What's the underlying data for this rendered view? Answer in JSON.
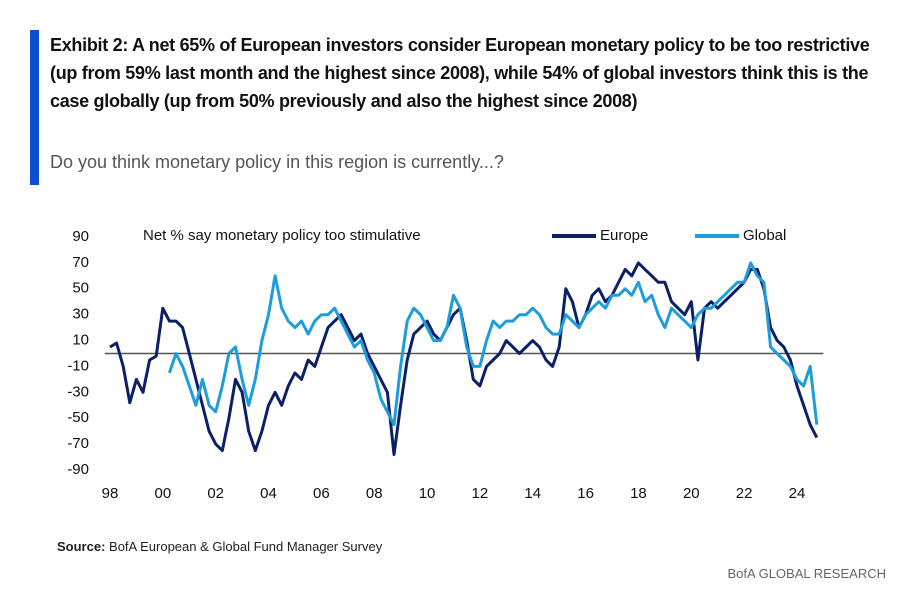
{
  "chart_data": {
    "type": "line",
    "title": "Exhibit 2: A net 65% of European investors consider European monetary policy to be too restrictive (up from 59% last month and the highest since 2008), while 54% of global investors think this is the case globally (up from 50% previously and also the highest since 2008)",
    "subtitle": "Do you think monetary policy in this region is currently...?",
    "annotation": "Net % say monetary policy too stimulative",
    "source_label": "Source:",
    "source": "BofA European & Global Fund Manager Survey",
    "footer": "BofA GLOBAL RESEARCH",
    "x": [
      1998,
      1998.25,
      1998.5,
      1998.75,
      1999,
      1999.25,
      1999.5,
      1999.75,
      2000,
      2000.25,
      2000.5,
      2000.75,
      2001,
      2001.25,
      2001.5,
      2001.75,
      2002,
      2002.25,
      2002.5,
      2002.75,
      2003,
      2003.25,
      2003.5,
      2003.75,
      2004,
      2004.25,
      2004.5,
      2004.75,
      2005,
      2005.25,
      2005.5,
      2005.75,
      2006,
      2006.25,
      2006.5,
      2006.75,
      2007,
      2007.25,
      2007.5,
      2007.75,
      2008,
      2008.25,
      2008.5,
      2008.75,
      2009,
      2009.25,
      2009.5,
      2009.75,
      2010,
      2010.25,
      2010.5,
      2010.75,
      2011,
      2011.25,
      2011.5,
      2011.75,
      2012,
      2012.25,
      2012.5,
      2012.75,
      2013,
      2013.25,
      2013.5,
      2013.75,
      2014,
      2014.25,
      2014.5,
      2014.75,
      2015,
      2015.25,
      2015.5,
      2015.75,
      2016,
      2016.25,
      2016.5,
      2016.75,
      2017,
      2017.25,
      2017.5,
      2017.75,
      2018,
      2018.25,
      2018.5,
      2018.75,
      2019,
      2019.25,
      2019.5,
      2019.75,
      2020,
      2020.25,
      2020.5,
      2020.75,
      2021,
      2021.25,
      2021.5,
      2021.75,
      2022,
      2022.25,
      2022.5,
      2022.75,
      2023,
      2023.25,
      2023.5,
      2023.75,
      2024,
      2024.25,
      2024.5,
      2024.75
    ],
    "series": [
      {
        "name": "Europe",
        "color": "#0c2065",
        "values": [
          5,
          8,
          -10,
          -38,
          -20,
          -30,
          -5,
          -2,
          35,
          25,
          25,
          20,
          0,
          -20,
          -40,
          -60,
          -70,
          -75,
          -50,
          -20,
          -30,
          -60,
          -75,
          -60,
          -40,
          -30,
          -40,
          -25,
          -15,
          -20,
          -5,
          -10,
          5,
          20,
          25,
          30,
          20,
          10,
          15,
          0,
          -10,
          -20,
          -30,
          -78,
          -40,
          -5,
          15,
          20,
          25,
          15,
          10,
          20,
          30,
          35,
          10,
          -20,
          -25,
          -10,
          -5,
          0,
          10,
          5,
          0,
          5,
          10,
          5,
          -5,
          -10,
          5,
          50,
          40,
          20,
          30,
          45,
          50,
          40,
          45,
          55,
          65,
          60,
          70,
          65,
          60,
          55,
          55,
          40,
          35,
          30,
          40,
          -5,
          35,
          40,
          35,
          40,
          45,
          50,
          55,
          65,
          65,
          50,
          20,
          10,
          5,
          -5,
          -25,
          -40,
          -55,
          -65
        ]
      },
      {
        "name": "Global",
        "color": "#1e9ddb",
        "values": [
          null,
          null,
          null,
          null,
          null,
          null,
          null,
          null,
          null,
          -15,
          0,
          -10,
          -25,
          -40,
          -20,
          -40,
          -45,
          -25,
          0,
          5,
          -20,
          -40,
          -20,
          10,
          30,
          60,
          35,
          25,
          20,
          25,
          15,
          25,
          30,
          30,
          35,
          25,
          15,
          5,
          10,
          -5,
          -15,
          -35,
          -45,
          -55,
          -10,
          25,
          35,
          30,
          20,
          10,
          10,
          20,
          45,
          35,
          5,
          -10,
          -10,
          10,
          25,
          20,
          25,
          25,
          30,
          30,
          35,
          30,
          20,
          15,
          15,
          30,
          25,
          20,
          30,
          35,
          40,
          35,
          45,
          45,
          50,
          45,
          55,
          40,
          45,
          30,
          20,
          35,
          30,
          25,
          20,
          30,
          35,
          35,
          40,
          45,
          50,
          55,
          55,
          70,
          60,
          55,
          5,
          0,
          -5,
          -10,
          -20,
          -25,
          -10,
          -55
        ]
      }
    ],
    "xlim": [
      1997.8,
      2025
    ],
    "xticks": [
      {
        "value": 1998,
        "label": "98"
      },
      {
        "value": 2000,
        "label": "00"
      },
      {
        "value": 2002,
        "label": "02"
      },
      {
        "value": 2004,
        "label": "04"
      },
      {
        "value": 2006,
        "label": "06"
      },
      {
        "value": 2008,
        "label": "08"
      },
      {
        "value": 2010,
        "label": "10"
      },
      {
        "value": 2012,
        "label": "12"
      },
      {
        "value": 2014,
        "label": "14"
      },
      {
        "value": 2016,
        "label": "16"
      },
      {
        "value": 2018,
        "label": "18"
      },
      {
        "value": 2020,
        "label": "20"
      },
      {
        "value": 2022,
        "label": "22"
      },
      {
        "value": 2024,
        "label": "24"
      }
    ],
    "ylim": [
      -90,
      90
    ],
    "yticks": [
      90,
      70,
      50,
      30,
      10,
      -10,
      -30,
      -50,
      -70,
      -90
    ],
    "grid": false,
    "zero_line": true,
    "legend": "top-right"
  }
}
